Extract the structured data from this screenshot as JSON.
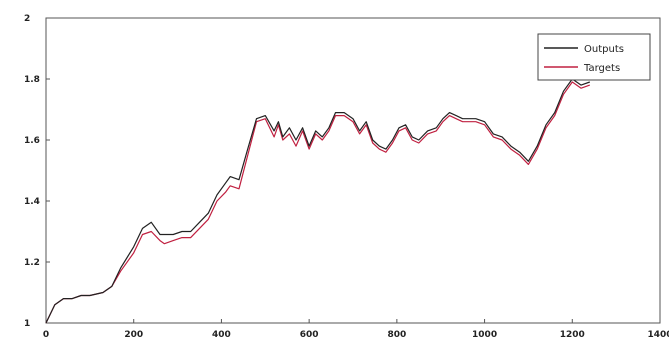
{
  "chart_data": {
    "type": "line",
    "title": "",
    "xlabel": "",
    "ylabel": "",
    "xlim": [
      0,
      1400
    ],
    "ylim": [
      1,
      2
    ],
    "xticks": [
      0,
      200,
      400,
      600,
      800,
      1000,
      1200,
      1400
    ],
    "yticks": [
      1,
      1.2,
      1.4,
      1.6,
      1.8,
      2
    ],
    "xtick_labels": [
      "0",
      "200",
      "400",
      "600",
      "800",
      "1000",
      "1200",
      "1400"
    ],
    "ytick_labels": [
      "1",
      "1.2",
      "1.4",
      "1.6",
      "1.8",
      "2"
    ],
    "grid": false,
    "legend_position": "top-right",
    "series": [
      {
        "name": "Outputs",
        "color": "#222222",
        "x": [
          0,
          20,
          40,
          60,
          80,
          100,
          130,
          150,
          170,
          200,
          220,
          240,
          260,
          270,
          290,
          310,
          330,
          350,
          370,
          390,
          410,
          420,
          440,
          460,
          480,
          500,
          520,
          530,
          540,
          555,
          570,
          585,
          600,
          615,
          630,
          645,
          660,
          680,
          700,
          715,
          730,
          745,
          760,
          775,
          790,
          805,
          820,
          835,
          850,
          870,
          890,
          905,
          920,
          935,
          950,
          965,
          980,
          1000,
          1020,
          1040,
          1060,
          1080,
          1100,
          1120,
          1140,
          1160,
          1180,
          1200,
          1220,
          1240
        ],
        "y": [
          1.0,
          1.06,
          1.08,
          1.08,
          1.09,
          1.09,
          1.1,
          1.12,
          1.18,
          1.25,
          1.31,
          1.33,
          1.29,
          1.29,
          1.29,
          1.3,
          1.3,
          1.33,
          1.36,
          1.42,
          1.46,
          1.48,
          1.47,
          1.57,
          1.67,
          1.68,
          1.63,
          1.66,
          1.61,
          1.64,
          1.6,
          1.64,
          1.58,
          1.63,
          1.61,
          1.64,
          1.69,
          1.69,
          1.67,
          1.63,
          1.66,
          1.6,
          1.58,
          1.57,
          1.6,
          1.64,
          1.65,
          1.61,
          1.6,
          1.63,
          1.64,
          1.67,
          1.69,
          1.68,
          1.67,
          1.67,
          1.67,
          1.66,
          1.62,
          1.61,
          1.58,
          1.56,
          1.53,
          1.58,
          1.65,
          1.69,
          1.76,
          1.8,
          1.78,
          1.79
        ]
      },
      {
        "name": "Targets",
        "color": "#c02040",
        "x": [
          0,
          20,
          40,
          60,
          80,
          100,
          130,
          150,
          170,
          200,
          220,
          240,
          260,
          270,
          290,
          310,
          330,
          350,
          370,
          390,
          410,
          420,
          440,
          460,
          480,
          500,
          520,
          530,
          540,
          555,
          570,
          585,
          600,
          615,
          630,
          645,
          660,
          680,
          700,
          715,
          730,
          745,
          760,
          775,
          790,
          805,
          820,
          835,
          850,
          870,
          890,
          905,
          920,
          935,
          950,
          965,
          980,
          1000,
          1020,
          1040,
          1060,
          1080,
          1100,
          1120,
          1140,
          1160,
          1180,
          1200,
          1220,
          1240
        ],
        "y": [
          1.0,
          1.06,
          1.08,
          1.08,
          1.09,
          1.09,
          1.1,
          1.12,
          1.17,
          1.23,
          1.29,
          1.3,
          1.27,
          1.26,
          1.27,
          1.28,
          1.28,
          1.31,
          1.34,
          1.4,
          1.43,
          1.45,
          1.44,
          1.55,
          1.66,
          1.67,
          1.61,
          1.65,
          1.6,
          1.62,
          1.58,
          1.63,
          1.57,
          1.62,
          1.6,
          1.63,
          1.68,
          1.68,
          1.66,
          1.62,
          1.65,
          1.59,
          1.57,
          1.56,
          1.59,
          1.63,
          1.64,
          1.6,
          1.59,
          1.62,
          1.63,
          1.66,
          1.68,
          1.67,
          1.66,
          1.66,
          1.66,
          1.65,
          1.61,
          1.6,
          1.57,
          1.55,
          1.52,
          1.57,
          1.64,
          1.68,
          1.75,
          1.79,
          1.77,
          1.78
        ]
      }
    ]
  }
}
